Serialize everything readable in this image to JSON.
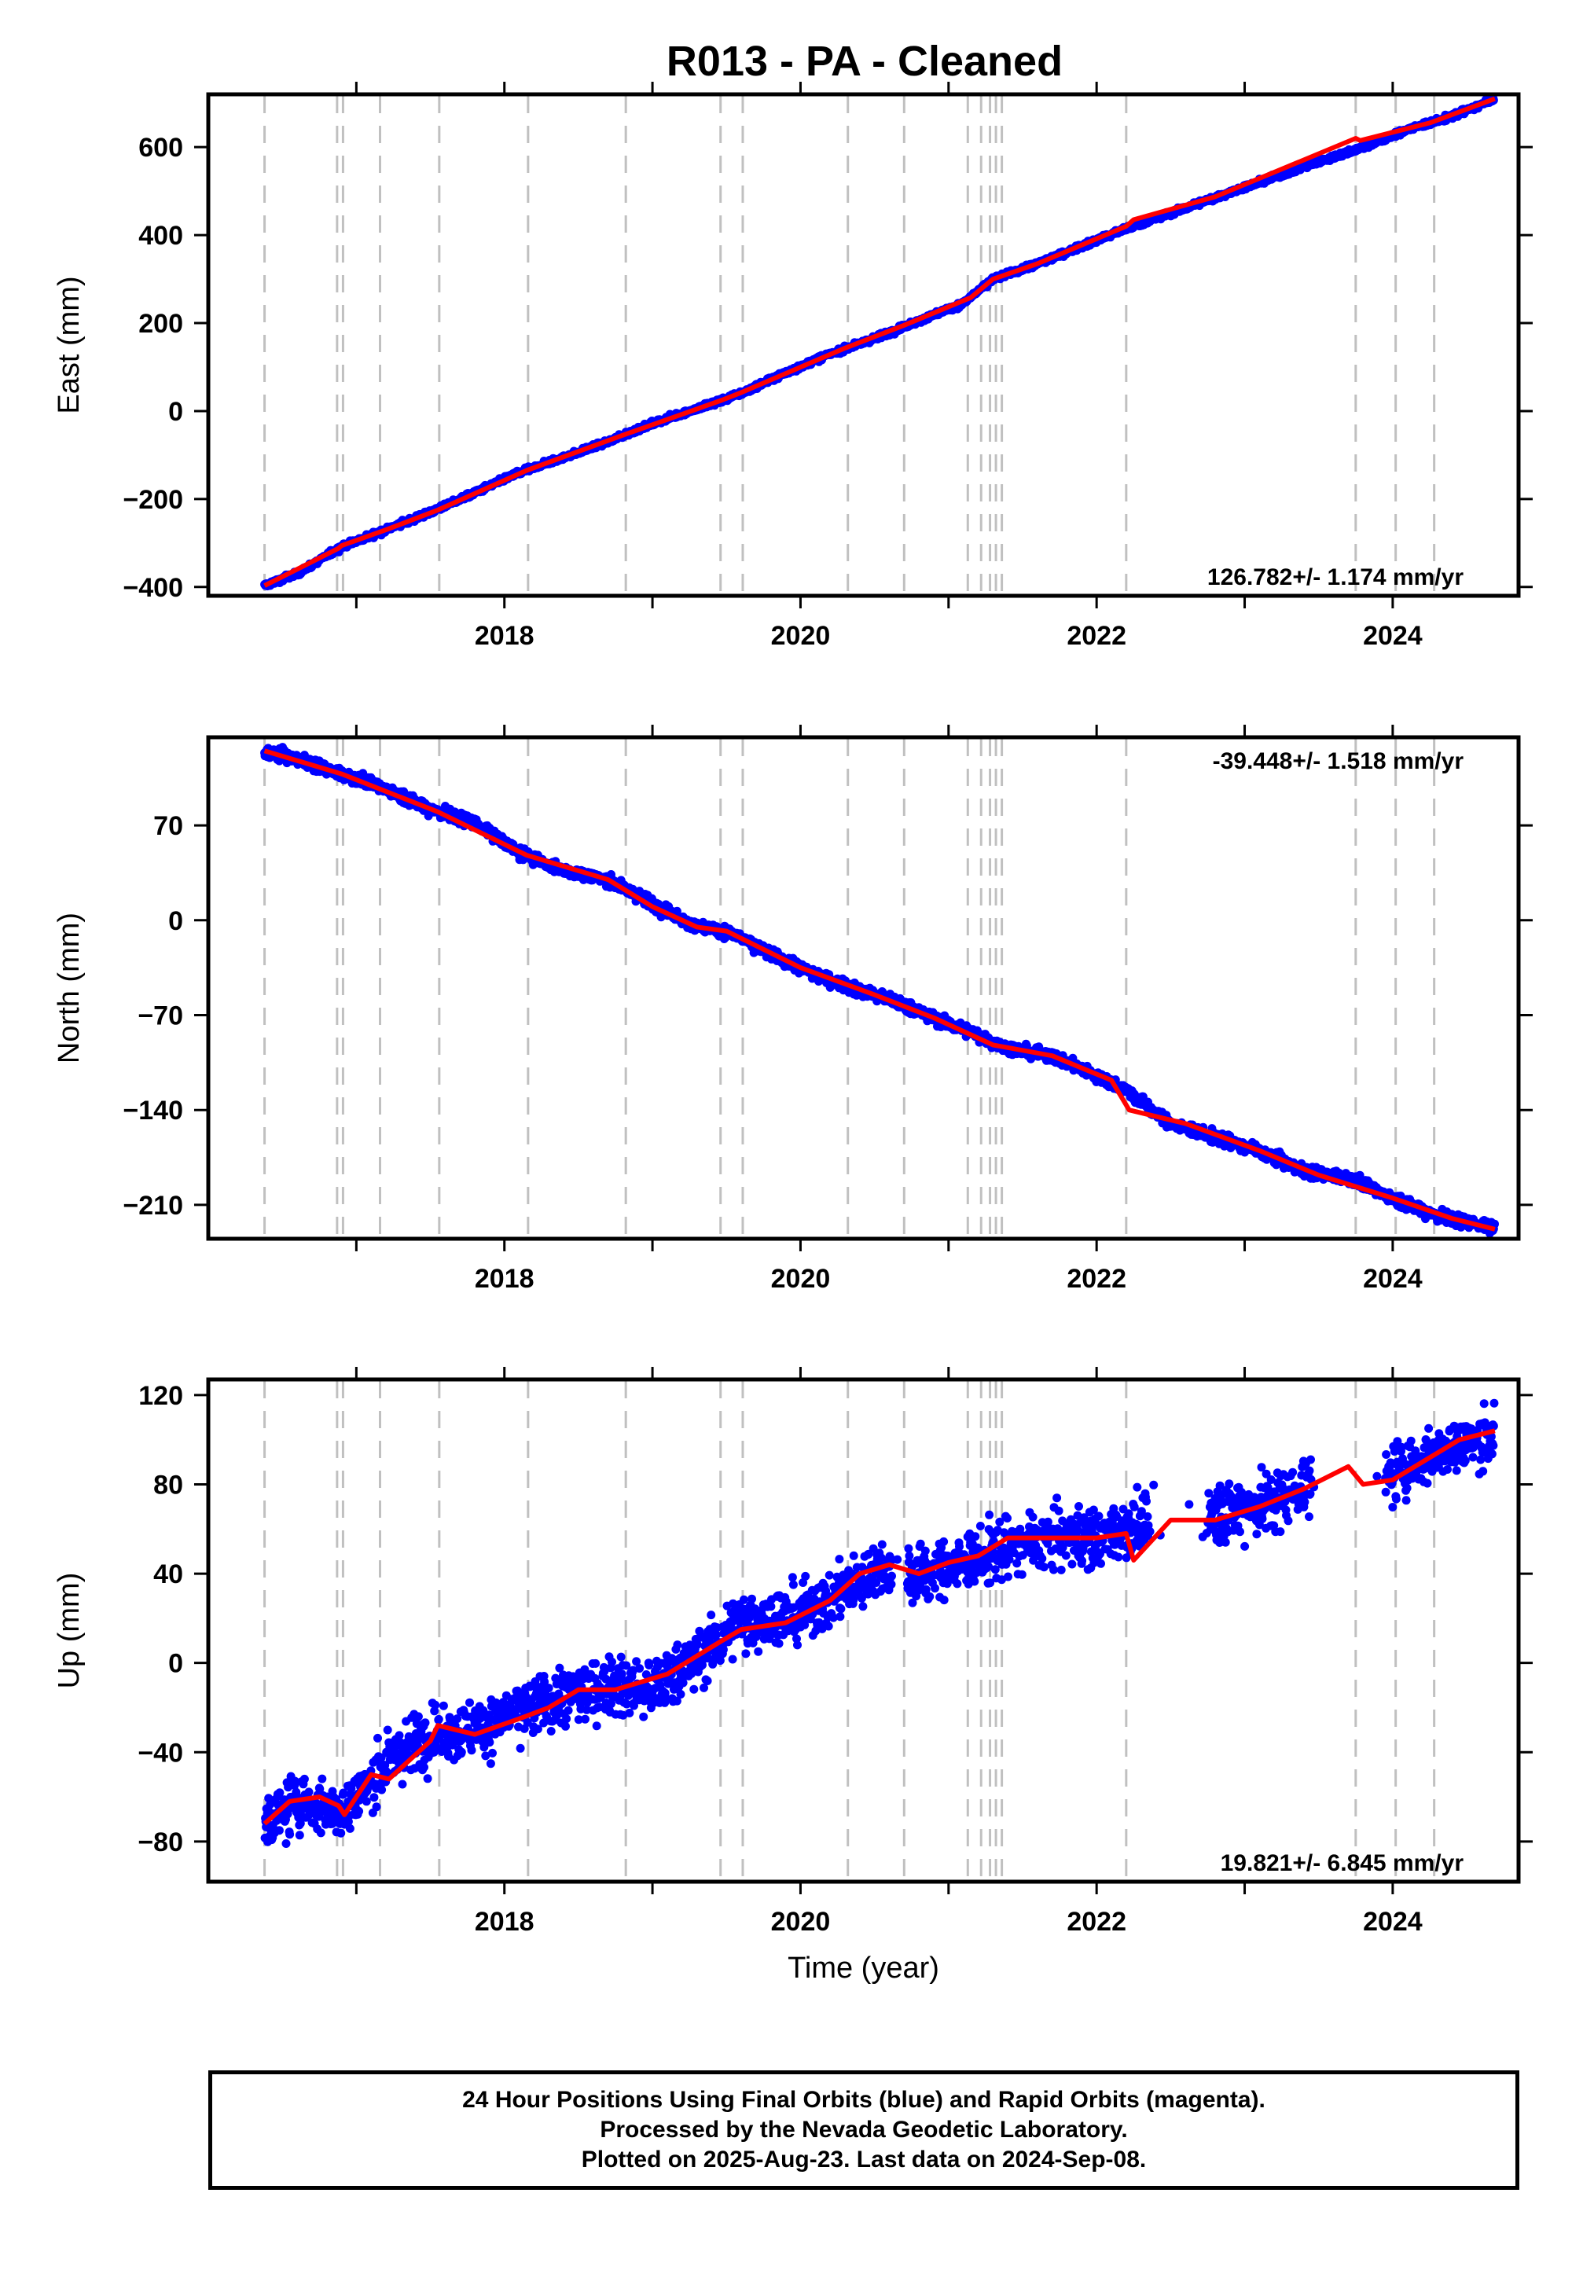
{
  "title": "R013  - PA - Cleaned",
  "caption": {
    "line1": "24 Hour Positions Using Final Orbits (blue) and Rapid Orbits (magenta).",
    "line2": "Processed by the Nevada Geodetic Laboratory.",
    "line3": "Plotted on 2025-Aug-23. Last data on 2024-Sep-08."
  },
  "colors": {
    "final_orbits": "#0000ff",
    "fit_line": "#ff0000",
    "events": "#c0c0c0",
    "frame": "#000000"
  },
  "chart_data": [
    {
      "type": "scatter",
      "ylabel": "East (mm)",
      "xlabel": "",
      "xlim": [
        2016.0,
        2024.85
      ],
      "ylim": [
        -420,
        720
      ],
      "xticks": [
        2018,
        2020,
        2022,
        2024
      ],
      "yticks": [
        -400,
        -200,
        0,
        200,
        400,
        600
      ],
      "ytick_labels": [
        "−400",
        "−200",
        "0",
        "200",
        "400",
        "600"
      ],
      "rate_label": "126.782+/- 1.174 mm/yr",
      "rate_position": "bottom-right",
      "series": [
        {
          "name": "Final Orbits",
          "points": [
            [
              2016.38,
              -397
            ],
            [
              2016.6,
              -370
            ],
            [
              2016.9,
              -308
            ],
            [
              2017.2,
              -270
            ],
            [
              2017.5,
              -230
            ],
            [
              2017.8,
              -185
            ],
            [
              2018.1,
              -140
            ],
            [
              2018.4,
              -105
            ],
            [
              2018.7,
              -70
            ],
            [
              2019.0,
              -28
            ],
            [
              2019.3,
              5
            ],
            [
              2019.6,
              40
            ],
            [
              2019.9,
              87
            ],
            [
              2020.2,
              130
            ],
            [
              2020.5,
              165
            ],
            [
              2020.8,
              205
            ],
            [
              2021.1,
              245
            ],
            [
              2021.3,
              300
            ],
            [
              2021.6,
              335
            ],
            [
              2021.9,
              375
            ],
            [
              2022.2,
              415
            ],
            [
              2022.5,
              450
            ],
            [
              2022.8,
              485
            ],
            [
              2023.1,
              520
            ],
            [
              2023.4,
              555
            ],
            [
              2023.8,
              600
            ],
            [
              2024.1,
              640
            ],
            [
              2024.4,
              670
            ],
            [
              2024.69,
              710
            ]
          ]
        },
        {
          "name": "fit",
          "points": [
            [
              2016.38,
              -397
            ],
            [
              2016.88,
              -312
            ],
            [
              2016.9,
              -306
            ],
            [
              2017.2,
              -270
            ],
            [
              2017.55,
              -225
            ],
            [
              2018.15,
              -135
            ],
            [
              2018.8,
              -55
            ],
            [
              2019.47,
              25
            ],
            [
              2019.6,
              42
            ],
            [
              2020.3,
              143
            ],
            [
              2020.7,
              195
            ],
            [
              2021.15,
              258
            ],
            [
              2021.3,
              300
            ],
            [
              2021.6,
              335
            ],
            [
              2022.2,
              420
            ],
            [
              2022.25,
              435
            ],
            [
              2022.8,
              487
            ],
            [
              2023.75,
              620
            ],
            [
              2023.78,
              615
            ],
            [
              2024.25,
              655
            ],
            [
              2024.69,
              710
            ]
          ]
        }
      ]
    },
    {
      "type": "scatter",
      "ylabel": "North (mm)",
      "xlabel": "",
      "xlim": [
        2016.0,
        2024.85
      ],
      "ylim": [
        -235,
        135
      ],
      "xticks": [
        2018,
        2020,
        2022,
        2024
      ],
      "yticks": [
        -210,
        -140,
        -70,
        0,
        70
      ],
      "ytick_labels": [
        "−210",
        "−140",
        "−70",
        "0",
        "70"
      ],
      "rate_label": "-39.448+/- 1.518 mm/yr",
      "rate_position": "top-right",
      "series": [
        {
          "name": "Final Orbits",
          "points": [
            [
              2016.38,
              125
            ],
            [
              2016.6,
              119
            ],
            [
              2016.9,
              108
            ],
            [
              2017.2,
              97
            ],
            [
              2017.5,
              82
            ],
            [
              2017.8,
              72
            ],
            [
              2018.1,
              50
            ],
            [
              2018.4,
              37
            ],
            [
              2018.7,
              30
            ],
            [
              2019.0,
              12
            ],
            [
              2019.3,
              -5
            ],
            [
              2019.5,
              -8
            ],
            [
              2019.8,
              -25
            ],
            [
              2020.1,
              -40
            ],
            [
              2020.4,
              -52
            ],
            [
              2020.6,
              -58
            ],
            [
              2020.9,
              -72
            ],
            [
              2021.2,
              -85
            ],
            [
              2021.4,
              -95
            ],
            [
              2021.7,
              -100
            ],
            [
              2022.0,
              -115
            ],
            [
              2022.2,
              -125
            ],
            [
              2022.5,
              -150
            ],
            [
              2022.8,
              -160
            ],
            [
              2023.1,
              -170
            ],
            [
              2023.4,
              -185
            ],
            [
              2023.7,
              -190
            ],
            [
              2024.0,
              -205
            ],
            [
              2024.3,
              -218
            ],
            [
              2024.69,
              -227
            ]
          ]
        },
        {
          "name": "fit",
          "points": [
            [
              2016.38,
              125
            ],
            [
              2016.9,
              108
            ],
            [
              2017.55,
              80
            ],
            [
              2018.15,
              48
            ],
            [
              2018.7,
              30
            ],
            [
              2019.0,
              10
            ],
            [
              2019.3,
              -5
            ],
            [
              2019.5,
              -8
            ],
            [
              2020.0,
              -35
            ],
            [
              2020.5,
              -55
            ],
            [
              2020.9,
              -72
            ],
            [
              2021.3,
              -92
            ],
            [
              2021.7,
              -100
            ],
            [
              2022.1,
              -118
            ],
            [
              2022.22,
              -140
            ],
            [
              2022.6,
              -150
            ],
            [
              2023.1,
              -170
            ],
            [
              2023.5,
              -188
            ],
            [
              2024.0,
              -205
            ],
            [
              2024.4,
              -220
            ],
            [
              2024.69,
              -228
            ]
          ]
        }
      ]
    },
    {
      "type": "scatter",
      "ylabel": "Up (mm)",
      "xlabel": "Time (year)",
      "xlim": [
        2016.0,
        2024.85
      ],
      "ylim": [
        -98,
        127
      ],
      "xticks": [
        2018,
        2020,
        2022,
        2024
      ],
      "yticks": [
        -80,
        -40,
        0,
        40,
        80,
        120
      ],
      "ytick_labels": [
        "−80",
        "−40",
        "0",
        "40",
        "80",
        "120"
      ],
      "rate_label": "19.821+/- 6.845 mm/yr",
      "rate_position": "bottom-right",
      "series": [
        {
          "name": "Final Orbits",
          "points": [
            [
              2016.38,
              -72
            ],
            [
              2016.6,
              -62
            ],
            [
              2016.9,
              -66
            ],
            [
              2017.2,
              -45
            ],
            [
              2017.5,
              -32
            ],
            [
              2017.8,
              -30
            ],
            [
              2018.1,
              -22
            ],
            [
              2018.4,
              -15
            ],
            [
              2018.7,
              -10
            ],
            [
              2019.0,
              -12
            ],
            [
              2019.3,
              2
            ],
            [
              2019.6,
              18
            ],
            [
              2019.9,
              20
            ],
            [
              2020.2,
              28
            ],
            [
              2020.5,
              42
            ],
            [
              2020.8,
              40
            ],
            [
              2021.1,
              45
            ],
            [
              2021.4,
              52
            ],
            [
              2021.7,
              56
            ],
            [
              2022.0,
              56
            ],
            [
              2022.3,
              62
            ],
            [
              2022.6,
              66
            ],
            [
              2022.9,
              68
            ],
            [
              2023.2,
              72
            ],
            [
              2023.5,
              82
            ],
            [
              2023.8,
              80
            ],
            [
              2024.1,
              88
            ],
            [
              2024.4,
              98
            ],
            [
              2024.69,
              102
            ]
          ]
        },
        {
          "name": "fit",
          "points": [
            [
              2016.38,
              -72
            ],
            [
              2016.55,
              -62
            ],
            [
              2016.75,
              -60
            ],
            [
              2016.88,
              -64
            ],
            [
              2016.92,
              -68
            ],
            [
              2017.1,
              -50
            ],
            [
              2017.22,
              -52
            ],
            [
              2017.5,
              -35
            ],
            [
              2017.55,
              -28
            ],
            [
              2017.8,
              -32
            ],
            [
              2018.1,
              -25
            ],
            [
              2018.3,
              -20
            ],
            [
              2018.5,
              -12
            ],
            [
              2018.75,
              -12
            ],
            [
              2019.1,
              -5
            ],
            [
              2019.47,
              10
            ],
            [
              2019.6,
              15
            ],
            [
              2019.9,
              18
            ],
            [
              2020.2,
              28
            ],
            [
              2020.4,
              40
            ],
            [
              2020.6,
              44
            ],
            [
              2020.8,
              40
            ],
            [
              2021.0,
              45
            ],
            [
              2021.2,
              48
            ],
            [
              2021.4,
              56
            ],
            [
              2021.7,
              56
            ],
            [
              2022.0,
              56
            ],
            [
              2022.2,
              58
            ],
            [
              2022.25,
              46
            ],
            [
              2022.5,
              64
            ],
            [
              2022.8,
              64
            ],
            [
              2023.1,
              70
            ],
            [
              2023.4,
              78
            ],
            [
              2023.7,
              88
            ],
            [
              2023.8,
              80
            ],
            [
              2024.0,
              82
            ],
            [
              2024.2,
              90
            ],
            [
              2024.45,
              100
            ],
            [
              2024.69,
              104
            ]
          ]
        }
      ]
    }
  ],
  "event_years": [
    2016.38,
    2016.87,
    2016.91,
    2017.16,
    2017.56,
    2018.16,
    2018.82,
    2019.46,
    2019.61,
    2020.32,
    2020.7,
    2021.13,
    2021.22,
    2021.28,
    2021.32,
    2021.36,
    2022.2,
    2023.75,
    2024.02,
    2024.28
  ]
}
